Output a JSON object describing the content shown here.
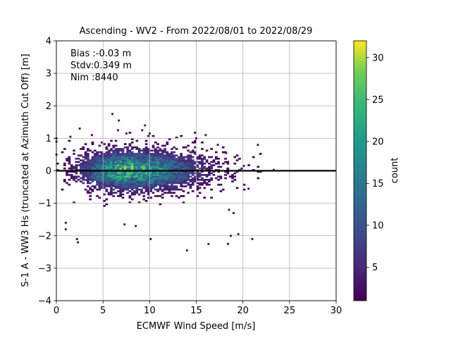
{
  "chart_data": {
    "type": "heatmap",
    "title": "Ascending - WV2 - From 2022/08/01 to 2022/08/29",
    "xlabel": "ECMWF Wind Speed [m/s]",
    "ylabel": "S-1 A - WW3 Hs (truncated at Azimuth Cut Off) [m]",
    "xlim": [
      0,
      30
    ],
    "ylim": [
      -4,
      4
    ],
    "xticks": [
      0,
      5,
      10,
      15,
      20,
      25,
      30
    ],
    "yticks": [
      -4,
      -3,
      -2,
      -1,
      0,
      1,
      2,
      3,
      4
    ],
    "grid": true,
    "stats": {
      "bias": "Bias :-0.03 m",
      "stdv": "Stdv:0.349 m",
      "nim": "Nim :8440"
    },
    "reference_line_y": 0,
    "colorbar": {
      "label": "count",
      "min": 1,
      "max": 32,
      "ticks": [
        5,
        10,
        15,
        20,
        25,
        30
      ],
      "colormap": "viridis"
    },
    "bin_size": {
      "x": 0.25,
      "y": 0.05
    },
    "density_peak": {
      "x": 7.5,
      "y": 0.0,
      "count": 22
    },
    "density_spread": {
      "x_sigma": 3.4,
      "y_sigma": 0.35
    },
    "outliers": [
      {
        "x": 0.0,
        "y": 1.0
      },
      {
        "x": 0.0,
        "y": 0.9
      },
      {
        "x": 0.0,
        "y": 0.5
      },
      {
        "x": 1.5,
        "y": 1.05
      },
      {
        "x": 1.0,
        "y": -1.6
      },
      {
        "x": 1.0,
        "y": -1.8
      },
      {
        "x": 2.2,
        "y": -2.1
      },
      {
        "x": 2.3,
        "y": -2.2
      },
      {
        "x": 2.5,
        "y": 1.3
      },
      {
        "x": 3.8,
        "y": 1.1
      },
      {
        "x": 6.0,
        "y": 1.75
      },
      {
        "x": 6.6,
        "y": 1.25
      },
      {
        "x": 6.7,
        "y": 1.55
      },
      {
        "x": 7.5,
        "y": 1.15
      },
      {
        "x": 7.3,
        "y": -1.65
      },
      {
        "x": 8.5,
        "y": -1.7
      },
      {
        "x": 9.2,
        "y": 1.25
      },
      {
        "x": 9.5,
        "y": 1.4
      },
      {
        "x": 10.0,
        "y": 1.15
      },
      {
        "x": 10.1,
        "y": -2.1
      },
      {
        "x": 14.0,
        "y": -2.45
      },
      {
        "x": 15.0,
        "y": 1.0
      },
      {
        "x": 16.0,
        "y": 1.1
      },
      {
        "x": 16.3,
        "y": -2.25
      },
      {
        "x": 18.4,
        "y": -2.25
      },
      {
        "x": 18.7,
        "y": -2.0
      },
      {
        "x": 19.5,
        "y": -1.95
      },
      {
        "x": 21.0,
        "y": -2.1
      },
      {
        "x": 21.6,
        "y": 0.8
      },
      {
        "x": 23.3,
        "y": 0.03
      },
      {
        "x": 17.3,
        "y": 0.8
      },
      {
        "x": 18.2,
        "y": 0.55
      },
      {
        "x": 20.6,
        "y": -0.55
      },
      {
        "x": 20.1,
        "y": 0.15
      },
      {
        "x": 19.0,
        "y": -1.3
      },
      {
        "x": 18.5,
        "y": -1.2
      }
    ]
  }
}
